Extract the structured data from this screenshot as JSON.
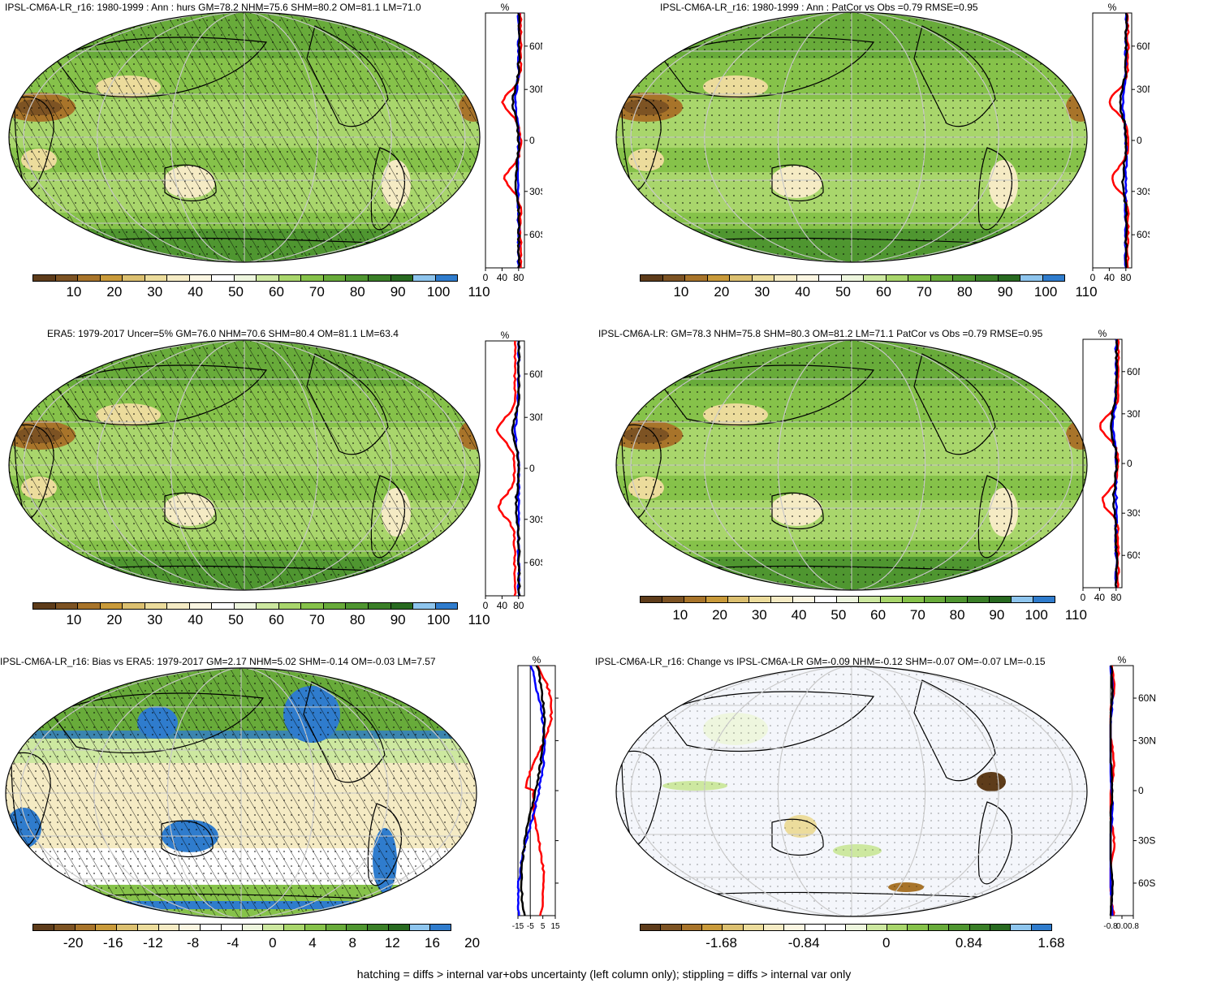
{
  "panels": [
    {
      "title": "IPSL-CM6A-LR_r16: 1980-1999 : Ann : hurs GM=78.2 NHM=75.6 SHM=80.2 OM=81.1 LM=71.0",
      "colorbar_labels": [
        "10",
        "20",
        "30",
        "40",
        "50",
        "60",
        "70",
        "80",
        "90",
        "100",
        "110"
      ],
      "profile_xticks": [
        "0",
        "40",
        "80"
      ],
      "profile_unit": "%"
    },
    {
      "title": "IPSL-CM6A-LR_r16: 1980-1999 : Ann : PatCor vs Obs =0.79 RMSE=0.95",
      "colorbar_labels": [
        "10",
        "20",
        "30",
        "40",
        "50",
        "60",
        "70",
        "80",
        "90",
        "100",
        "110"
      ],
      "profile_xticks": [
        "0",
        "40",
        "80"
      ],
      "profile_unit": "%"
    },
    {
      "title": "ERA5: 1979-2017 Uncer=5% GM=76.0 NHM=70.6 SHM=80.4 OM=81.1 LM=63.4",
      "colorbar_labels": [
        "10",
        "20",
        "30",
        "40",
        "50",
        "60",
        "70",
        "80",
        "90",
        "100",
        "110"
      ],
      "profile_xticks": [
        "0",
        "40",
        "80"
      ],
      "profile_unit": "%"
    },
    {
      "title": "IPSL-CM6A-LR: GM=78.3 NHM=75.8 SHM=80.3 OM=81.2 LM=71.1 PatCor vs Obs =0.79 RMSE=0.95",
      "colorbar_labels": [
        "10",
        "20",
        "30",
        "40",
        "50",
        "60",
        "70",
        "80",
        "90",
        "100",
        "110"
      ],
      "profile_xticks": [
        "0",
        "40",
        "80"
      ],
      "profile_unit": "%"
    },
    {
      "title": "IPSL-CM6A-LR_r16: Bias vs ERA5: 1979-2017 GM=2.17 NHM=5.02 SHM=-0.14 OM=-0.03 LM=7.57",
      "colorbar_labels": [
        "-20",
        "-16",
        "-12",
        "-8",
        "-4",
        "0",
        "4",
        "8",
        "12",
        "16",
        "20"
      ],
      "profile_xticks": [
        "-15",
        "-5",
        "5",
        "15"
      ],
      "profile_unit": "%"
    },
    {
      "title": "IPSL-CM6A-LR_r16: Change vs IPSL-CM6A-LR GM=-0.09 NHM=-0.12 SHM=-0.07 OM=-0.07 LM=-0.15",
      "colorbar_labels": [
        "-1.68",
        "-0.84",
        "0",
        "0.84",
        "1.68"
      ],
      "profile_xticks": [
        "-0.8",
        "0.0",
        "0.8"
      ],
      "profile_unit": "%"
    }
  ],
  "lat_labels": [
    "60N",
    "30N",
    "0",
    "30S",
    "60S"
  ],
  "colors": {
    "abs_scale": [
      "#5e3c1a",
      "#7d5323",
      "#a8742a",
      "#c99a3a",
      "#dcc070",
      "#ecdc9c",
      "#f5ebc4",
      "#fbf6e2",
      "#ffffff",
      "#eef6de",
      "#cde8a0",
      "#a9d66c",
      "#86c24a",
      "#68ab3a",
      "#4f9630",
      "#3a7f27",
      "#286a20",
      "#8ec5ee",
      "#2f7ccd"
    ],
    "diff_scale": [
      "#5e3c1a",
      "#7d5323",
      "#a8742a",
      "#c99a3a",
      "#dcc070",
      "#ecdc9c",
      "#f5ebc4",
      "#fbf6e2",
      "#ffffff",
      "#ffffff",
      "#eef6de",
      "#cde8a0",
      "#a9d66c",
      "#86c24a",
      "#68ab3a",
      "#4f9630",
      "#3a7f27",
      "#286a20",
      "#8ec5ee",
      "#2f7ccd"
    ],
    "model_line": "#000000",
    "obs_line": "#ff0000",
    "other_line": "#0000ff"
  },
  "footer": "hatching = diffs > internal var+obs uncertainty (left column only); stippling = diffs > internal var only"
}
